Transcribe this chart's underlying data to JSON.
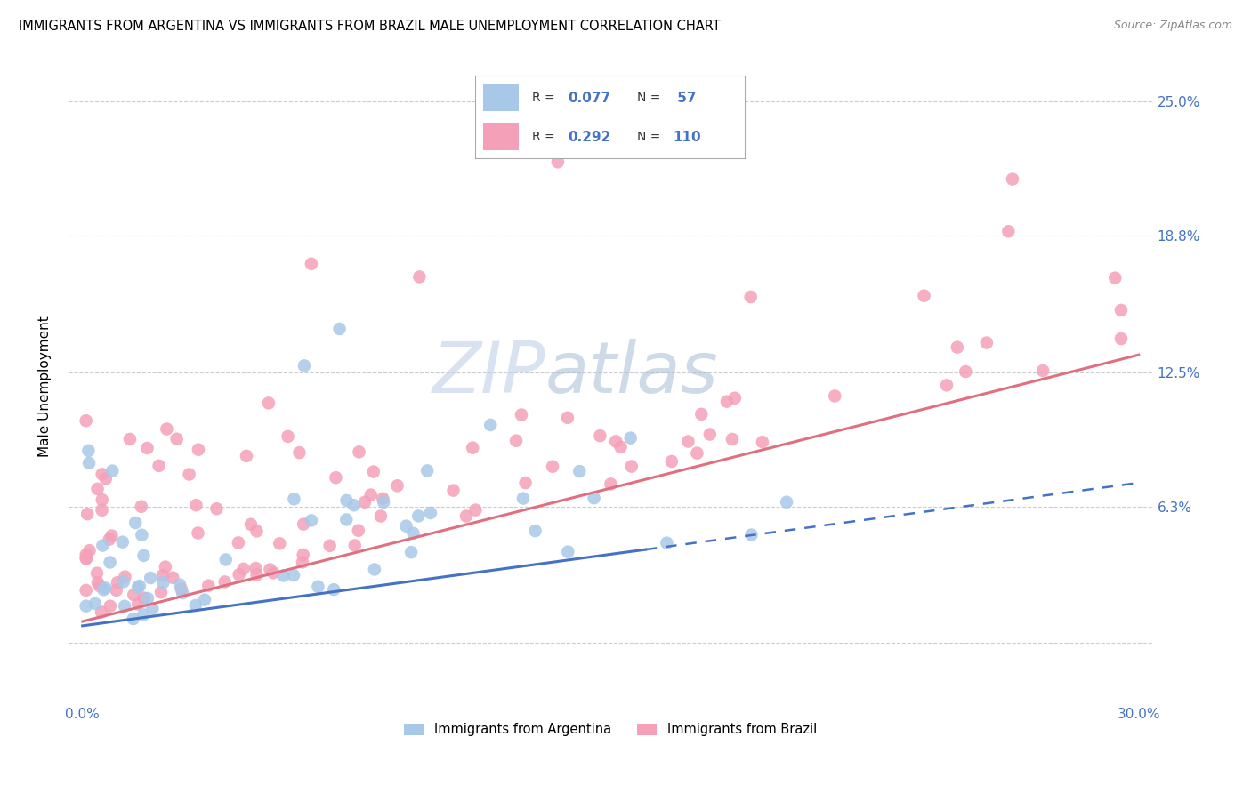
{
  "title": "IMMIGRANTS FROM ARGENTINA VS IMMIGRANTS FROM BRAZIL MALE UNEMPLOYMENT CORRELATION CHART",
  "source": "Source: ZipAtlas.com",
  "ylabel": "Male Unemployment",
  "ytick_vals": [
    0.063,
    0.125,
    0.188,
    0.25
  ],
  "ytick_labels": [
    "6.3%",
    "12.5%",
    "18.8%",
    "25.0%"
  ],
  "xmin": 0.0,
  "xmax": 0.3,
  "ymin": -0.028,
  "ymax": 0.265,
  "argentina_color": "#a8c8e8",
  "brazil_color": "#f4a0b8",
  "argentina_line_color": "#4472c4",
  "brazil_line_color": "#e07080",
  "argentina_R": 0.077,
  "argentina_N": 57,
  "brazil_R": 0.292,
  "brazil_N": 110,
  "background_color": "#ffffff",
  "grid_color": "#cccccc",
  "tick_label_color": "#4472c4",
  "arg_line_x_solid_end": 0.16,
  "bra_line_intercept": 0.01,
  "bra_line_slope": 0.41,
  "arg_line_intercept": 0.008,
  "arg_line_slope": 0.22
}
